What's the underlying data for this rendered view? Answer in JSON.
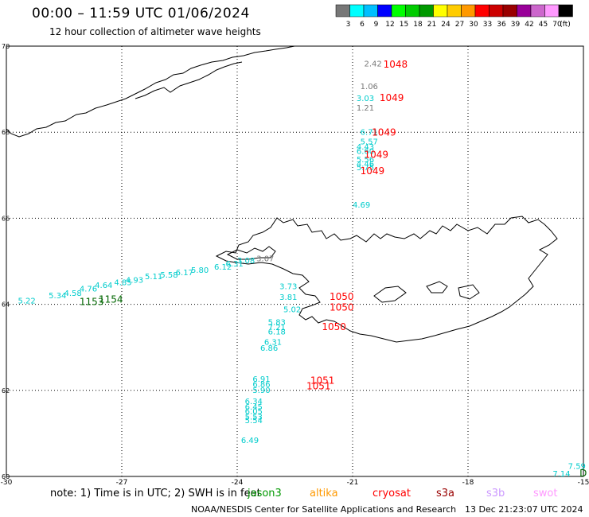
{
  "header": {
    "title": "00:00 – 11:59 UTC 01/06/2024",
    "subtitle": "12 hour collection of altimeter wave heights"
  },
  "colorbar": {
    "colors": [
      "#777777",
      "#00ffff",
      "#00bfff",
      "#0000ff",
      "#00ff00",
      "#00cc00",
      "#009900",
      "#ffff00",
      "#ffcc00",
      "#ff9900",
      "#ff0000",
      "#cc0000",
      "#990000",
      "#990099",
      "#cc66cc",
      "#ff99ff",
      "#000000"
    ],
    "labels": [
      "3",
      "6",
      "9",
      "12",
      "15",
      "18",
      "21",
      "24",
      "27",
      "30",
      "33",
      "36",
      "39",
      "42",
      "45",
      "70",
      "(ft)"
    ]
  },
  "map": {
    "lon_ticks": [
      "-30",
      "-27",
      "-24",
      "-21",
      "-18",
      "-15"
    ],
    "lat_ticks": [
      "70",
      "68",
      "66",
      "64",
      "62",
      "60"
    ],
    "lon_range": [
      -30,
      -15
    ],
    "lat_range": [
      60,
      70
    ],
    "grid": true
  },
  "observations": [
    {
      "text": "2.42",
      "lon": -20.7,
      "lat": 69.53,
      "color": "#777777"
    },
    {
      "text": "1.06",
      "lon": -20.8,
      "lat": 69.0,
      "color": "#777777"
    },
    {
      "text": "3.03",
      "lon": -20.9,
      "lat": 68.72,
      "color": "#00cccc"
    },
    {
      "text": "1.21",
      "lon": -20.9,
      "lat": 68.5,
      "color": "#777777"
    },
    {
      "text": "6.71",
      "lon": -20.8,
      "lat": 67.94,
      "color": "#00cccc"
    },
    {
      "text": "5.57",
      "lon": -20.8,
      "lat": 67.72,
      "color": "#00cccc"
    },
    {
      "text": "4.43",
      "lon": -20.9,
      "lat": 67.6,
      "color": "#00cccc"
    },
    {
      "text": "6.60",
      "lon": -20.9,
      "lat": 67.5,
      "color": "#00cccc"
    },
    {
      "text": "5.56",
      "lon": -20.9,
      "lat": 67.3,
      "color": "#00cccc"
    },
    {
      "text": "4.46",
      "lon": -20.9,
      "lat": 67.2,
      "color": "#00cccc"
    },
    {
      "text": "5.75",
      "lon": -20.9,
      "lat": 67.12,
      "color": "#00cccc"
    },
    {
      "text": "4.69",
      "lon": -21.0,
      "lat": 66.25,
      "color": "#00cccc"
    },
    {
      "text": "3.08",
      "lon": -24.0,
      "lat": 64.95,
      "color": "#00cccc"
    },
    {
      "text": "3.07",
      "lon": -23.5,
      "lat": 65.0,
      "color": "#777777"
    },
    {
      "text": "6.31",
      "lon": -24.3,
      "lat": 64.88,
      "color": "#00cccc"
    },
    {
      "text": "6.12",
      "lon": -24.6,
      "lat": 64.81,
      "color": "#00cccc"
    },
    {
      "text": "5.80",
      "lon": -25.2,
      "lat": 64.73,
      "color": "#00cccc"
    },
    {
      "text": "6.17",
      "lon": -25.6,
      "lat": 64.68,
      "color": "#00cccc"
    },
    {
      "text": "5.58",
      "lon": -26.0,
      "lat": 64.62,
      "color": "#00cccc"
    },
    {
      "text": "5.11",
      "lon": -26.4,
      "lat": 64.58,
      "color": "#00cccc"
    },
    {
      "text": "4.93",
      "lon": -26.9,
      "lat": 64.5,
      "color": "#00cccc"
    },
    {
      "text": "4.85",
      "lon": -27.2,
      "lat": 64.45,
      "color": "#00cccc"
    },
    {
      "text": "4.64",
      "lon": -27.7,
      "lat": 64.38,
      "color": "#00cccc"
    },
    {
      "text": "4.76",
      "lon": -28.1,
      "lat": 64.3,
      "color": "#00cccc"
    },
    {
      "text": "4.58",
      "lon": -28.5,
      "lat": 64.2,
      "color": "#00cccc"
    },
    {
      "text": "5.34",
      "lon": -28.9,
      "lat": 64.14,
      "color": "#00cccc"
    },
    {
      "text": "5.22",
      "lon": -29.7,
      "lat": 64.02,
      "color": "#00cccc"
    },
    {
      "text": "3.73",
      "lon": -22.9,
      "lat": 64.35,
      "color": "#00cccc"
    },
    {
      "text": "3.81",
      "lon": -22.9,
      "lat": 64.1,
      "color": "#00cccc"
    },
    {
      "text": "5.02",
      "lon": -22.8,
      "lat": 63.82,
      "color": "#00cccc"
    },
    {
      "text": "5.83",
      "lon": -23.2,
      "lat": 63.52,
      "color": "#00cccc"
    },
    {
      "text": "7.21",
      "lon": -23.2,
      "lat": 63.4,
      "color": "#00cccc"
    },
    {
      "text": "6.18",
      "lon": -23.2,
      "lat": 63.3,
      "color": "#00cccc"
    },
    {
      "text": "6.31",
      "lon": -23.3,
      "lat": 63.06,
      "color": "#00cccc"
    },
    {
      "text": "6.86",
      "lon": -23.4,
      "lat": 62.92,
      "color": "#00cccc"
    },
    {
      "text": "6.91",
      "lon": -23.6,
      "lat": 62.2,
      "color": "#00cccc"
    },
    {
      "text": "6.86",
      "lon": -23.6,
      "lat": 62.08,
      "color": "#00cccc"
    },
    {
      "text": "5.90",
      "lon": -23.6,
      "lat": 61.94,
      "color": "#00cccc"
    },
    {
      "text": "6.34",
      "lon": -23.8,
      "lat": 61.68,
      "color": "#00cccc"
    },
    {
      "text": "6.45",
      "lon": -23.8,
      "lat": 61.55,
      "color": "#00cccc"
    },
    {
      "text": "6.05",
      "lon": -23.8,
      "lat": 61.45,
      "color": "#00cccc"
    },
    {
      "text": "5.53",
      "lon": -23.8,
      "lat": 61.32,
      "color": "#00cccc"
    },
    {
      "text": "5.54",
      "lon": -23.8,
      "lat": 61.24,
      "color": "#00cccc"
    },
    {
      "text": "6.49",
      "lon": -23.9,
      "lat": 60.78,
      "color": "#00cccc"
    },
    {
      "text": "7.59",
      "lon": -15.4,
      "lat": 60.18,
      "color": "#00cccc"
    },
    {
      "text": "7.14",
      "lon": -15.8,
      "lat": 60.0,
      "color": "#00cccc"
    }
  ],
  "cyclones": [
    {
      "text": "1048",
      "lon": -20.2,
      "lat": 69.5,
      "color": "#ff0000"
    },
    {
      "text": "1049",
      "lon": -20.3,
      "lat": 68.72,
      "color": "#ff0000"
    },
    {
      "text": "1049",
      "lon": -20.5,
      "lat": 67.92,
      "color": "#ff0000"
    },
    {
      "text": "1049",
      "lon": -20.7,
      "lat": 67.4,
      "color": "#ff0000"
    },
    {
      "text": "1049",
      "lon": -20.8,
      "lat": 67.02,
      "color": "#ff0000"
    },
    {
      "text": "1050",
      "lon": -21.6,
      "lat": 64.1,
      "color": "#ff0000"
    },
    {
      "text": "1050",
      "lon": -21.6,
      "lat": 63.85,
      "color": "#ff0000"
    },
    {
      "text": "1050",
      "lon": -21.8,
      "lat": 63.4,
      "color": "#ff0000"
    },
    {
      "text": "1051",
      "lon": -22.1,
      "lat": 62.15,
      "color": "#ff0000"
    },
    {
      "text": "1051",
      "lon": -22.2,
      "lat": 62.02,
      "color": "#ff0000"
    },
    {
      "text": "1153",
      "lon": -28.1,
      "lat": 63.98,
      "color": "#006600"
    },
    {
      "text": "1154",
      "lon": -27.6,
      "lat": 64.04,
      "color": "#006600"
    },
    {
      "text": "D",
      "lon": -15.1,
      "lat": 60.0,
      "color": "#006600"
    }
  ],
  "footer": {
    "note": "note:  1) Time is in UTC; 2) SWH is in feet",
    "satellites": [
      {
        "name": "jason3",
        "color": "#009900"
      },
      {
        "name": "altika",
        "color": "#ff9900"
      },
      {
        "name": "cryosat",
        "color": "#ff0000"
      },
      {
        "name": "s3a",
        "color": "#990000"
      },
      {
        "name": "s3b",
        "color": "#cc99ff"
      },
      {
        "name": "swot",
        "color": "#ff99ff"
      }
    ],
    "credit": "NOAA/NESDIS Center for Satellite Applications and Research",
    "timestamp": "13 Dec 21:23:07 UTC 2024"
  }
}
